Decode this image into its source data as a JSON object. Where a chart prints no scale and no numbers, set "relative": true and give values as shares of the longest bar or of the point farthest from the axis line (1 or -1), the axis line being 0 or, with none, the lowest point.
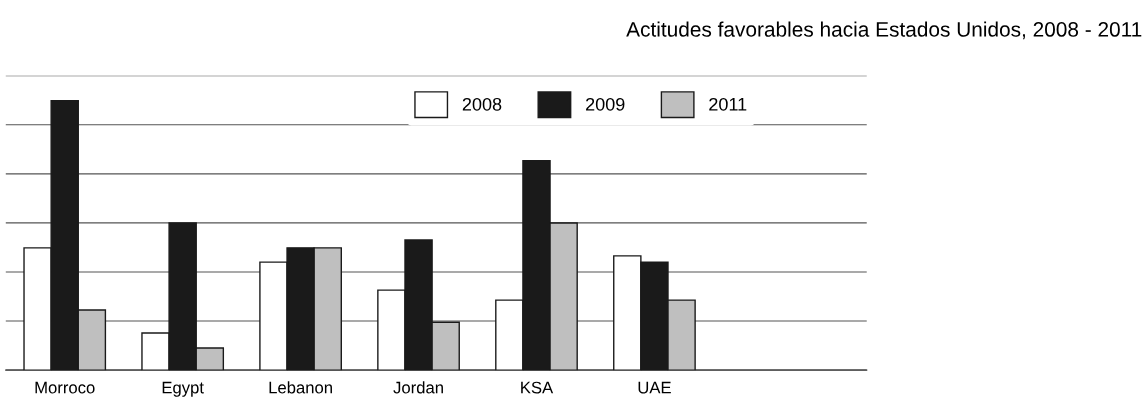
{
  "chart_data": {
    "type": "bar",
    "title": "Actitudes favorables hacia Estados Unidos, 2008 - 2011",
    "relative": true,
    "categories": [
      "Morroco",
      "Egypt",
      "Lebanon",
      "Jordan",
      "KSA",
      "UAE"
    ],
    "series": [
      {
        "name": "2008",
        "color": "#ffffff",
        "values": [
          0.454,
          0.138,
          0.401,
          0.297,
          0.26,
          0.424
        ]
      },
      {
        "name": "2009",
        "color": "#1a1a1a",
        "values": [
          1,
          0.546,
          0.454,
          0.483,
          0.777,
          0.401
        ]
      },
      {
        "name": "2011",
        "color": "#bfbfbf",
        "values": [
          0.223,
          0.082,
          0.454,
          0.178,
          0.546,
          0.26
        ]
      }
    ],
    "grid": "y",
    "legend": "top right"
  }
}
